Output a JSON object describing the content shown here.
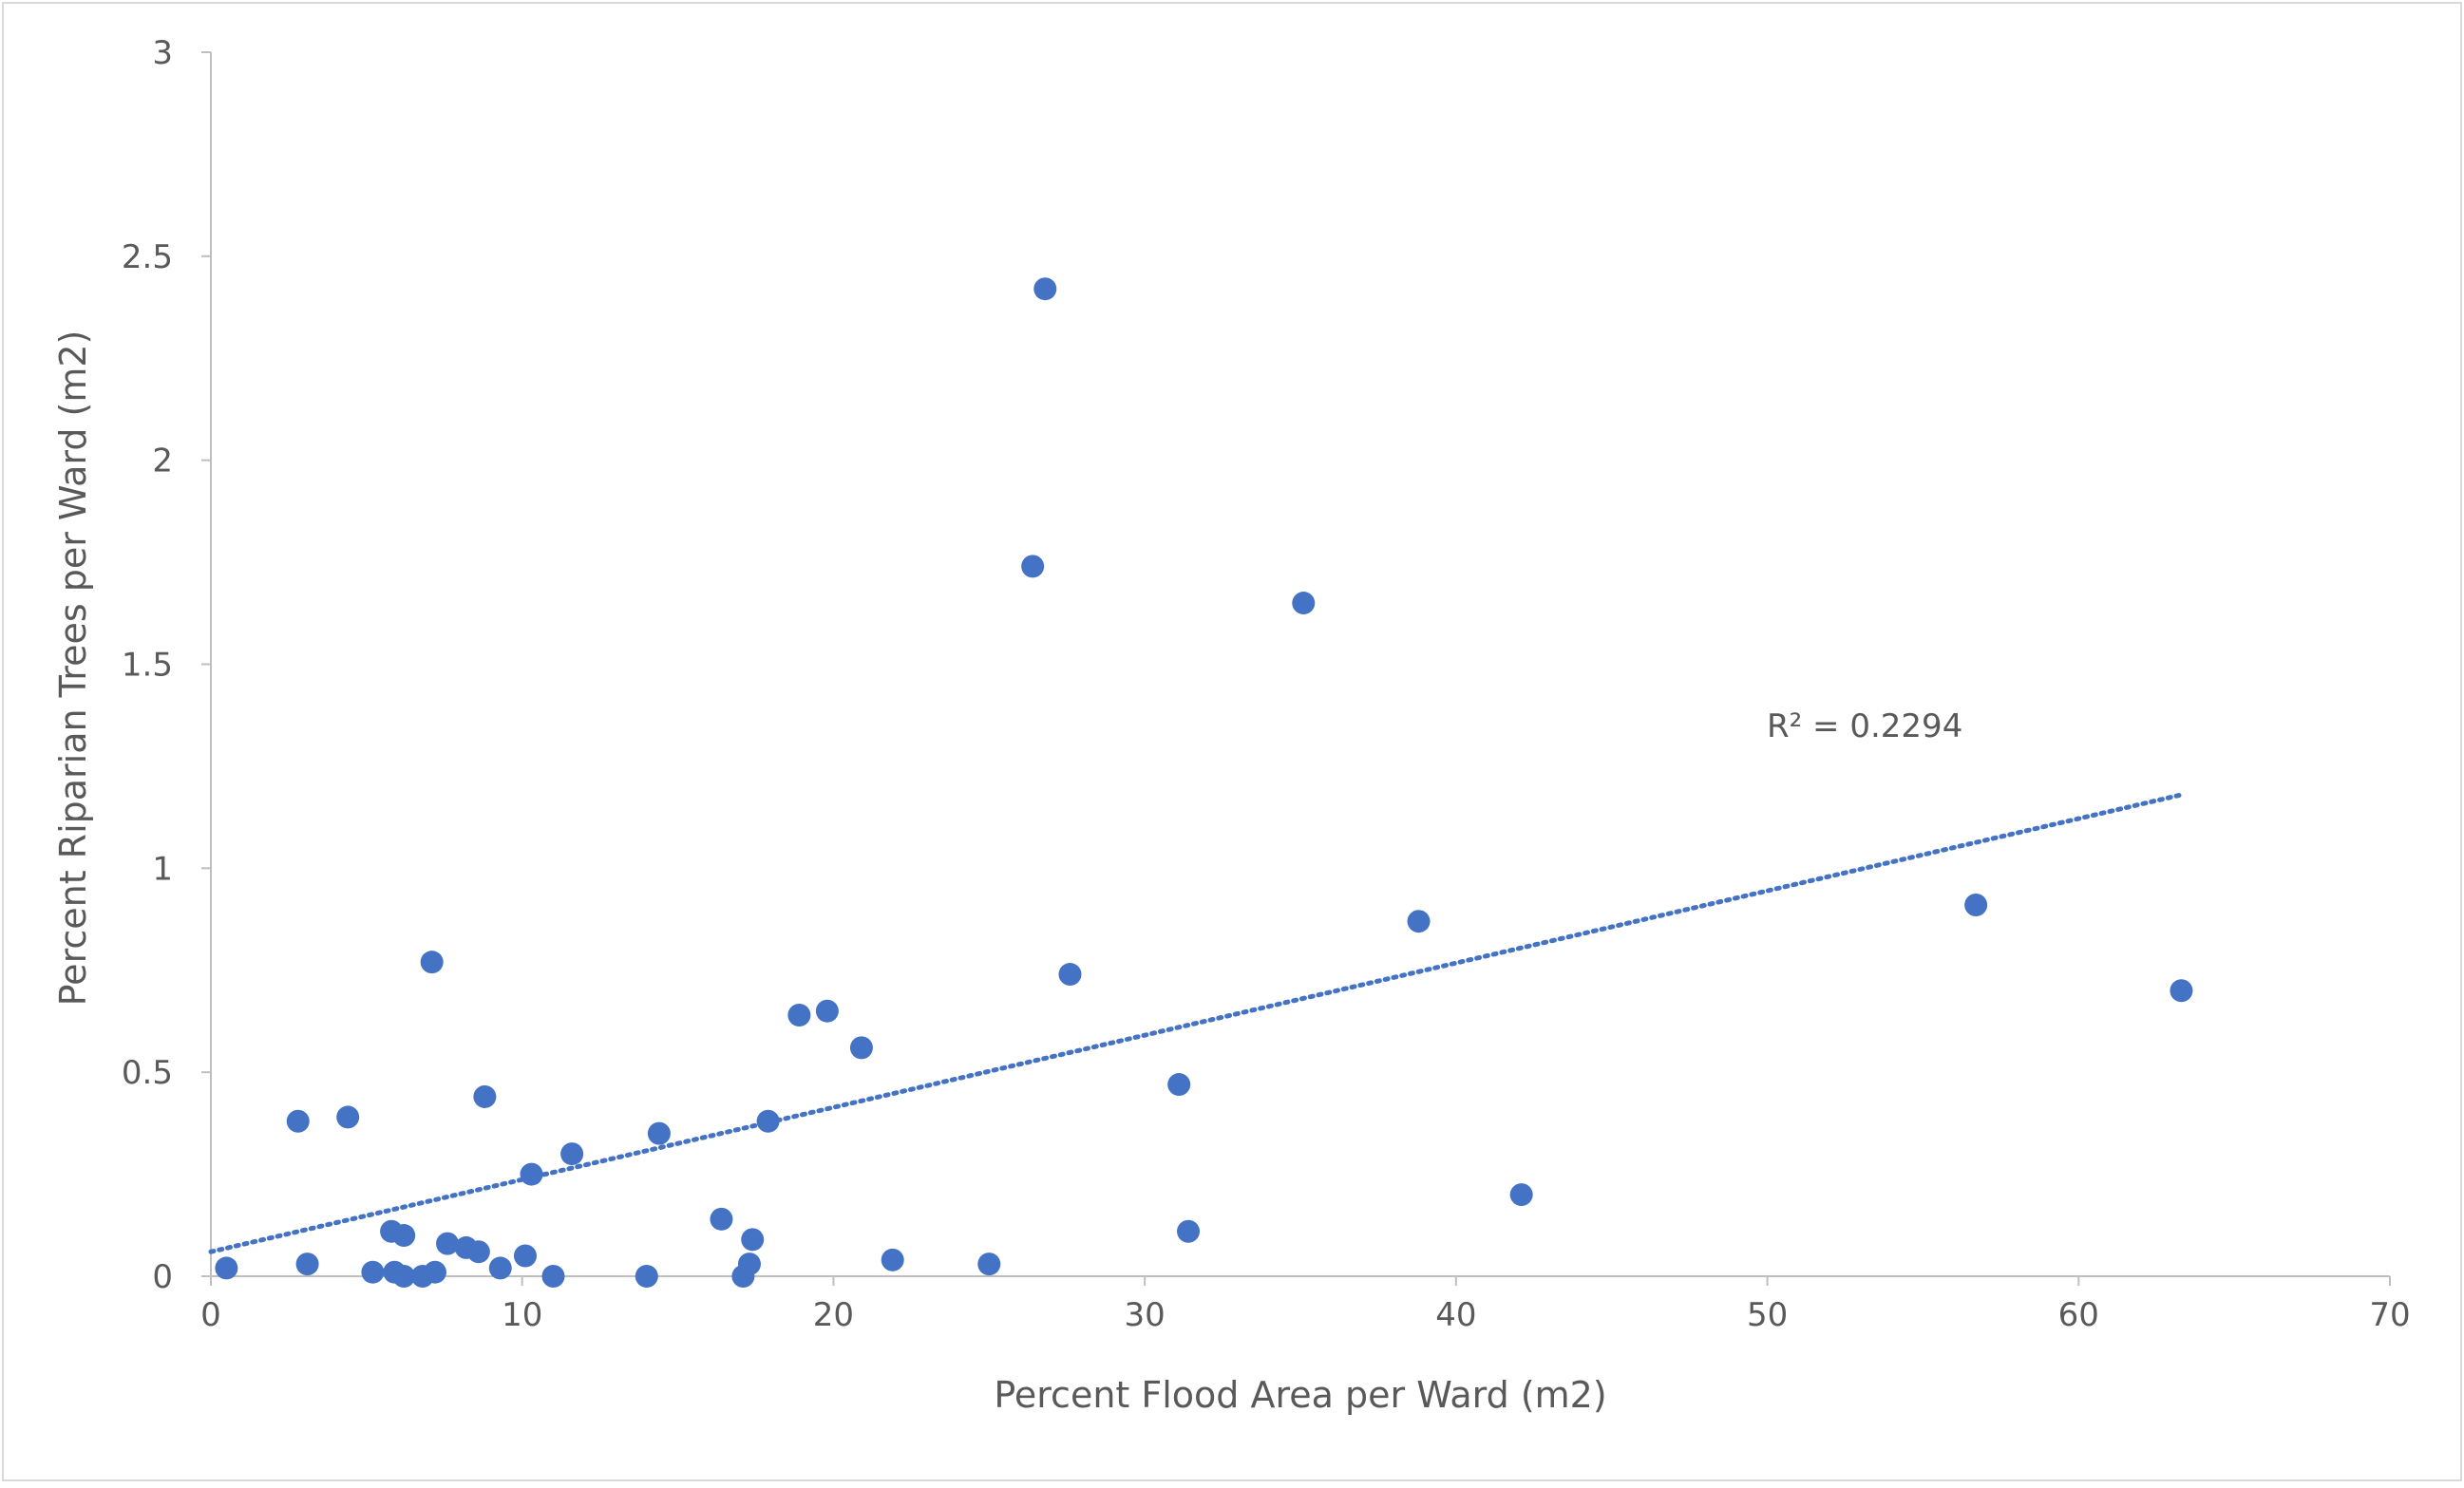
{
  "chart_data": {
    "type": "scatter",
    "title": "",
    "xlabel": "Percent Flood Area per Ward (m2)",
    "ylabel": "Percent Riparian Trees per Ward (m2)",
    "xlim": [
      0,
      70
    ],
    "ylim": [
      0,
      3
    ],
    "x_ticks": [
      0,
      10,
      20,
      30,
      40,
      50,
      60,
      70
    ],
    "y_ticks": [
      0,
      0.5,
      1,
      1.5,
      2,
      2.5,
      3
    ],
    "x_tick_labels": [
      "0",
      "10",
      "20",
      "30",
      "40",
      "50",
      "60",
      "70"
    ],
    "y_tick_labels": [
      "0",
      "0.5",
      "1",
      "1.5",
      "2",
      "2.5",
      "3"
    ],
    "grid": false,
    "legend": "none",
    "marker_color": "#4472C4",
    "trendline": {
      "type": "linear",
      "style": "dotted",
      "color": "#4472C4",
      "x_range": [
        0,
        63.3
      ],
      "y_at_start": 0.06,
      "y_at_end": 1.18,
      "r_squared_label": "R² = 0.2294"
    },
    "points": [
      [
        0.5,
        0.02
      ],
      [
        2.8,
        0.38
      ],
      [
        3.1,
        0.03
      ],
      [
        4.4,
        0.39
      ],
      [
        5.2,
        0.01
      ],
      [
        5.8,
        0.11
      ],
      [
        5.9,
        0.01
      ],
      [
        6.2,
        0.1
      ],
      [
        6.2,
        0.0
      ],
      [
        6.8,
        0.0
      ],
      [
        7.1,
        0.77
      ],
      [
        7.2,
        0.01
      ],
      [
        7.6,
        0.08
      ],
      [
        8.2,
        0.07
      ],
      [
        8.6,
        0.06
      ],
      [
        8.8,
        0.44
      ],
      [
        9.3,
        0.02
      ],
      [
        10.1,
        0.05
      ],
      [
        10.3,
        0.25
      ],
      [
        11.0,
        0.0
      ],
      [
        11.6,
        0.3
      ],
      [
        14.0,
        0.0
      ],
      [
        14.4,
        0.35
      ],
      [
        16.4,
        0.14
      ],
      [
        17.1,
        0.0
      ],
      [
        17.3,
        0.03
      ],
      [
        17.4,
        0.09
      ],
      [
        17.9,
        0.38
      ],
      [
        18.9,
        0.64
      ],
      [
        19.8,
        0.65
      ],
      [
        20.9,
        0.56
      ],
      [
        21.9,
        0.04
      ],
      [
        25.0,
        0.03
      ],
      [
        26.4,
        1.74
      ],
      [
        26.8,
        2.42
      ],
      [
        27.6,
        0.74
      ],
      [
        31.1,
        0.47
      ],
      [
        31.4,
        0.11
      ],
      [
        35.1,
        1.65
      ],
      [
        38.8,
        0.87
      ],
      [
        42.1,
        0.2
      ],
      [
        56.7,
        0.91
      ],
      [
        63.3,
        0.7
      ]
    ]
  }
}
